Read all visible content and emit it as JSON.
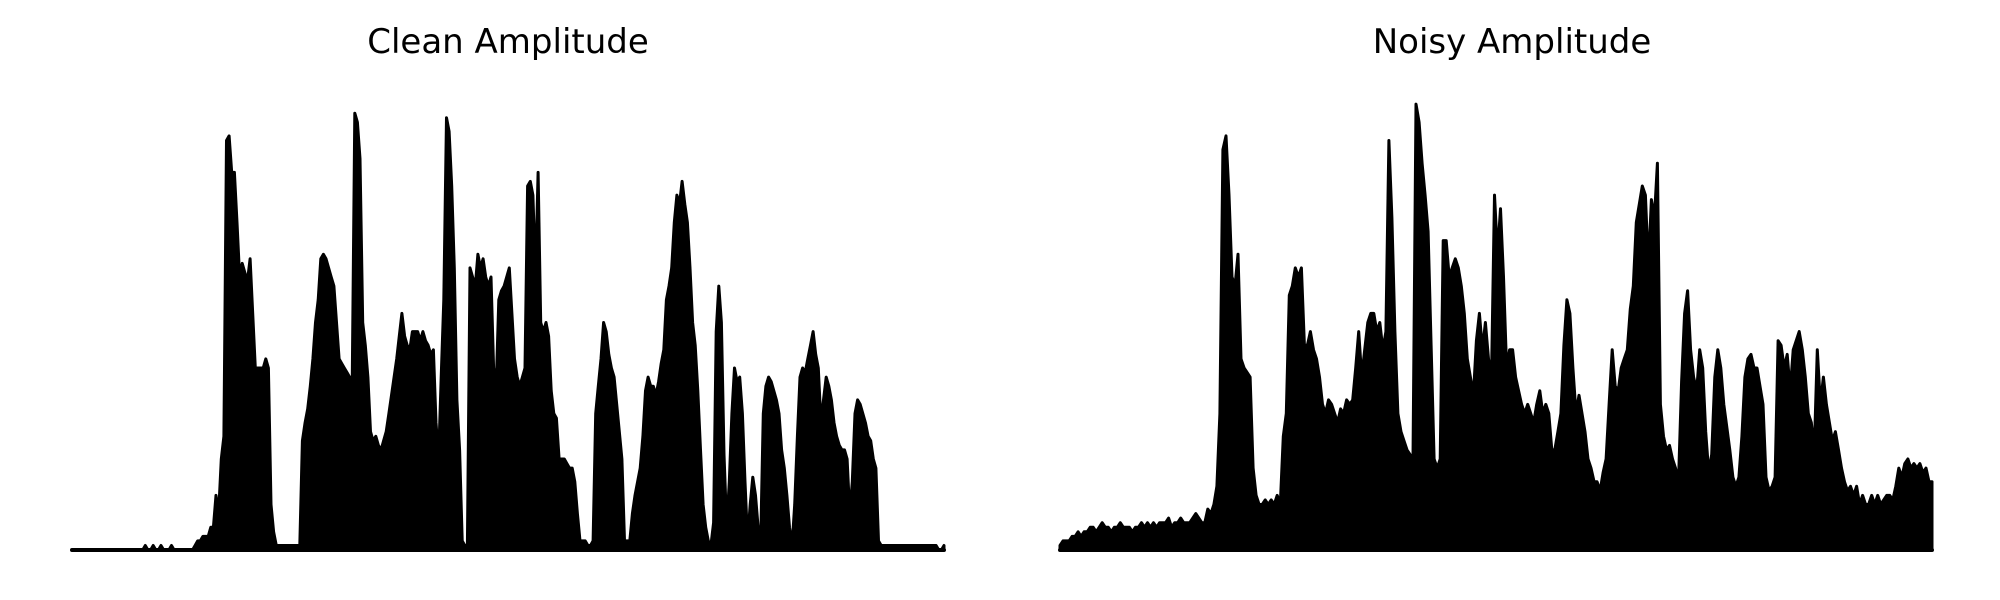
{
  "chart_data": [
    {
      "type": "area",
      "title": "Clean Amplitude",
      "xlabel": "",
      "ylabel": "",
      "axes_visible": false,
      "grid": false,
      "color": "#000000",
      "series": [
        {
          "values": [
            0,
            0,
            0,
            0,
            0,
            0,
            0,
            0,
            0,
            0,
            0,
            0,
            0,
            0,
            0,
            0,
            0,
            0,
            0,
            0,
            0,
            0,
            0,
            0,
            0,
            0,
            0,
            0,
            0.01,
            0,
            0,
            0.01,
            0,
            0,
            0.01,
            0,
            0,
            0,
            0.01,
            0,
            0,
            0,
            0,
            0,
            0,
            0,
            0,
            0.01,
            0.02,
            0.02,
            0.03,
            0.03,
            0.03,
            0.05,
            0.05,
            0.12,
            0.08,
            0.2,
            0.25,
            0.9,
            0.91,
            0.83,
            0.83,
            0.72,
            0.6,
            0.63,
            0.61,
            0.59,
            0.64,
            0.52,
            0.4,
            0.4,
            0.4,
            0.4,
            0.42,
            0.4,
            0.1,
            0.04,
            0.01,
            0.01,
            0.01,
            0.01,
            0.01,
            0.01,
            0.01,
            0.01,
            0.01,
            0.01,
            0.24,
            0.28,
            0.31,
            0.36,
            0.42,
            0.5,
            0.55,
            0.64,
            0.65,
            0.64,
            0.62,
            0.6,
            0.58,
            0.5,
            0.42,
            0.41,
            0.4,
            0.39,
            0.38,
            0.36,
            0.96,
            0.94,
            0.86,
            0.5,
            0.45,
            0.38,
            0.26,
            0.24,
            0.25,
            0.23,
            0.22,
            0.24,
            0.26,
            0.3,
            0.34,
            0.38,
            0.42,
            0.47,
            0.52,
            0.47,
            0.45,
            0.44,
            0.48,
            0.48,
            0.48,
            0.46,
            0.48,
            0.46,
            0.45,
            0.43,
            0.44,
            0.28,
            0.2,
            0.38,
            0.55,
            0.95,
            0.92,
            0.8,
            0.62,
            0.33,
            0.22,
            0.02,
            0.01,
            0.01,
            0.62,
            0.6,
            0.58,
            0.65,
            0.62,
            0.64,
            0.6,
            0.58,
            0.6,
            0.4,
            0.36,
            0.55,
            0.57,
            0.58,
            0.6,
            0.62,
            0.52,
            0.42,
            0.38,
            0.36,
            0.38,
            0.4,
            0.8,
            0.81,
            0.78,
            0.6,
            0.83,
            0.5,
            0.48,
            0.5,
            0.47,
            0.35,
            0.3,
            0.29,
            0.2,
            0.2,
            0.2,
            0.19,
            0.18,
            0.18,
            0.15,
            0.08,
            0.02,
            0.02,
            0.02,
            0.01,
            0.01,
            0.02,
            0.3,
            0.36,
            0.42,
            0.5,
            0.48,
            0.43,
            0.4,
            0.38,
            0.32,
            0.26,
            0.2,
            0.02,
            0.02,
            0.02,
            0.08,
            0.12,
            0.15,
            0.18,
            0.25,
            0.35,
            0.38,
            0.36,
            0.36,
            0.34,
            0.37,
            0.41,
            0.44,
            0.55,
            0.58,
            0.62,
            0.72,
            0.78,
            0.76,
            0.81,
            0.76,
            0.72,
            0.62,
            0.5,
            0.45,
            0.35,
            0.22,
            0.1,
            0.05,
            0.02,
            0.01,
            0.06,
            0.48,
            0.58,
            0.5,
            0.21,
            0.05,
            0.15,
            0.3,
            0.4,
            0.37,
            0.38,
            0.3,
            0.15,
            0.02,
            0.1,
            0.16,
            0.12,
            0.05,
            0.02,
            0.3,
            0.36,
            0.38,
            0.37,
            0.35,
            0.33,
            0.3,
            0.22,
            0.18,
            0.12,
            0.05,
            0.01,
            0.1,
            0.25,
            0.38,
            0.4,
            0.39,
            0.42,
            0.45,
            0.48,
            0.43,
            0.4,
            0.28,
            0.33,
            0.38,
            0.36,
            0.33,
            0.28,
            0.25,
            0.23,
            0.22,
            0.22,
            0.2,
            0.08,
            0.15,
            0.3,
            0.33,
            0.32,
            0.3,
            0.28,
            0.25,
            0.24,
            0.2,
            0.18,
            0.02,
            0.01,
            0.01,
            0.01,
            0.01,
            0.01,
            0.01,
            0.01,
            0.01,
            0.01,
            0.01,
            0.01,
            0.01,
            0.01,
            0.01,
            0.01,
            0.01,
            0.01,
            0.01,
            0.01,
            0.01,
            0.01,
            0.01,
            0,
            0,
            0.01
          ]
        }
      ]
    },
    {
      "type": "area",
      "title": "Noisy Amplitude",
      "xlabel": "",
      "ylabel": "",
      "axes_visible": false,
      "grid": false,
      "color": "#000000",
      "series": [
        {
          "values": [
            0.01,
            0.02,
            0.02,
            0.02,
            0.03,
            0.03,
            0.04,
            0.03,
            0.04,
            0.04,
            0.05,
            0.05,
            0.04,
            0.05,
            0.06,
            0.05,
            0.05,
            0.04,
            0.05,
            0.05,
            0.06,
            0.05,
            0.05,
            0.05,
            0.04,
            0.05,
            0.05,
            0.06,
            0.05,
            0.06,
            0.05,
            0.06,
            0.05,
            0.06,
            0.06,
            0.06,
            0.07,
            0.05,
            0.06,
            0.06,
            0.07,
            0.06,
            0.06,
            0.06,
            0.07,
            0.08,
            0.07,
            0.06,
            0.06,
            0.09,
            0.08,
            0.1,
            0.14,
            0.3,
            0.88,
            0.91,
            0.78,
            0.6,
            0.58,
            0.65,
            0.42,
            0.4,
            0.39,
            0.38,
            0.18,
            0.12,
            0.1,
            0.1,
            0.11,
            0.1,
            0.11,
            0.1,
            0.12,
            0.1,
            0.25,
            0.3,
            0.56,
            0.58,
            0.62,
            0.6,
            0.62,
            0.45,
            0.45,
            0.48,
            0.44,
            0.42,
            0.38,
            0.32,
            0.3,
            0.33,
            0.32,
            0.3,
            0.28,
            0.31,
            0.3,
            0.33,
            0.32,
            0.33,
            0.4,
            0.48,
            0.38,
            0.44,
            0.5,
            0.52,
            0.52,
            0.48,
            0.5,
            0.44,
            0.48,
            0.9,
            0.73,
            0.48,
            0.3,
            0.26,
            0.24,
            0.22,
            0.21,
            0.2,
            0.98,
            0.94,
            0.85,
            0.78,
            0.7,
            0.45,
            0.2,
            0.18,
            0.2,
            0.68,
            0.68,
            0.6,
            0.62,
            0.64,
            0.62,
            0.58,
            0.52,
            0.42,
            0.38,
            0.34,
            0.46,
            0.52,
            0.44,
            0.5,
            0.42,
            0.38,
            0.78,
            0.65,
            0.75,
            0.6,
            0.4,
            0.44,
            0.44,
            0.38,
            0.35,
            0.32,
            0.3,
            0.32,
            0.3,
            0.28,
            0.32,
            0.35,
            0.3,
            0.32,
            0.3,
            0.22,
            0.22,
            0.26,
            0.3,
            0.45,
            0.55,
            0.52,
            0.4,
            0.3,
            0.34,
            0.3,
            0.26,
            0.2,
            0.18,
            0.15,
            0.15,
            0.13,
            0.17,
            0.2,
            0.32,
            0.44,
            0.36,
            0.35,
            0.4,
            0.42,
            0.44,
            0.53,
            0.58,
            0.72,
            0.76,
            0.8,
            0.78,
            0.62,
            0.77,
            0.73,
            0.85,
            0.32,
            0.25,
            0.22,
            0.23,
            0.2,
            0.18,
            0.15,
            0.37,
            0.52,
            0.57,
            0.44,
            0.38,
            0.35,
            0.44,
            0.4,
            0.26,
            0.17,
            0.21,
            0.38,
            0.44,
            0.4,
            0.32,
            0.27,
            0.22,
            0.16,
            0.14,
            0.16,
            0.25,
            0.38,
            0.42,
            0.43,
            0.4,
            0.4,
            0.36,
            0.32,
            0.16,
            0.13,
            0.14,
            0.16,
            0.46,
            0.45,
            0.4,
            0.43,
            0.35,
            0.44,
            0.46,
            0.48,
            0.44,
            0.38,
            0.3,
            0.28,
            0.22,
            0.44,
            0.32,
            0.38,
            0.32,
            0.28,
            0.24,
            0.26,
            0.22,
            0.18,
            0.15,
            0.13,
            0.14,
            0.12,
            0.14,
            0.1,
            0.12,
            0.1,
            0.1,
            0.12,
            0.1,
            0.12,
            0.1,
            0.11,
            0.12,
            0.12,
            0.11,
            0.14,
            0.18,
            0.16,
            0.19,
            0.2,
            0.18,
            0.19,
            0.18,
            0.19,
            0.17,
            0.18,
            0.15,
            0.15
          ]
        }
      ]
    }
  ]
}
